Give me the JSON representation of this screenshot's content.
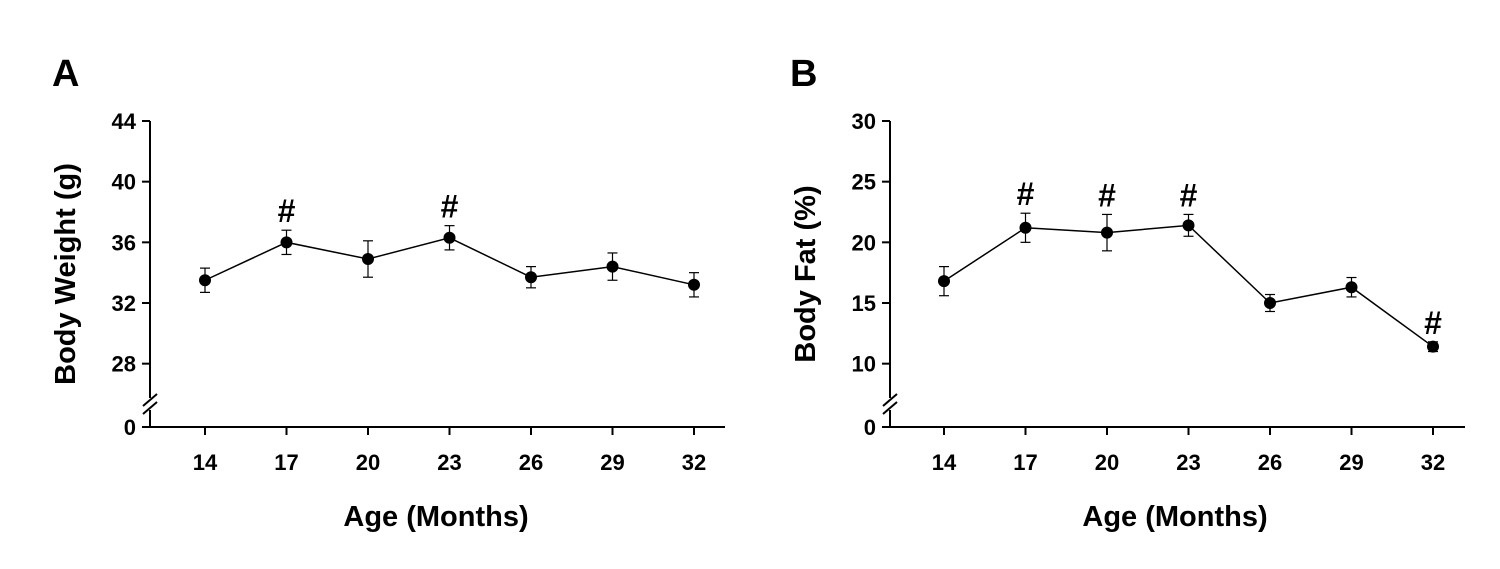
{
  "chart_data": [
    {
      "type": "line",
      "panel_label": "A",
      "xlabel": "Age (Months)",
      "ylabel": "Body Weight (g)",
      "categories": [
        "14",
        "17",
        "20",
        "23",
        "26",
        "29",
        "32"
      ],
      "y_ticks": [
        "0",
        "28",
        "32",
        "36",
        "40",
        "44"
      ],
      "ylim": [
        26,
        44
      ],
      "axis_break": true,
      "grid": false,
      "series": [
        {
          "values": [
            33.5,
            36.0,
            34.9,
            36.3,
            33.7,
            34.4,
            33.2
          ],
          "error": [
            0.8,
            0.8,
            1.2,
            0.8,
            0.7,
            0.9,
            0.8
          ],
          "significance": [
            "",
            "#",
            "",
            "#",
            "",
            "",
            ""
          ]
        }
      ]
    },
    {
      "type": "line",
      "panel_label": "B",
      "xlabel": "Age (Months)",
      "ylabel": "Body Fat (%)",
      "categories": [
        "14",
        "17",
        "20",
        "23",
        "26",
        "29",
        "32"
      ],
      "y_ticks": [
        "0",
        "10",
        "15",
        "20",
        "25",
        "30"
      ],
      "ylim": [
        7.5,
        30
      ],
      "axis_break": true,
      "grid": false,
      "series": [
        {
          "values": [
            16.8,
            21.2,
            20.8,
            21.4,
            15.0,
            16.3,
            11.4
          ],
          "error": [
            1.2,
            1.2,
            1.5,
            0.9,
            0.7,
            0.8,
            0.4
          ],
          "significance": [
            "",
            "#",
            "#",
            "#",
            "",
            "",
            "#"
          ]
        }
      ]
    }
  ]
}
